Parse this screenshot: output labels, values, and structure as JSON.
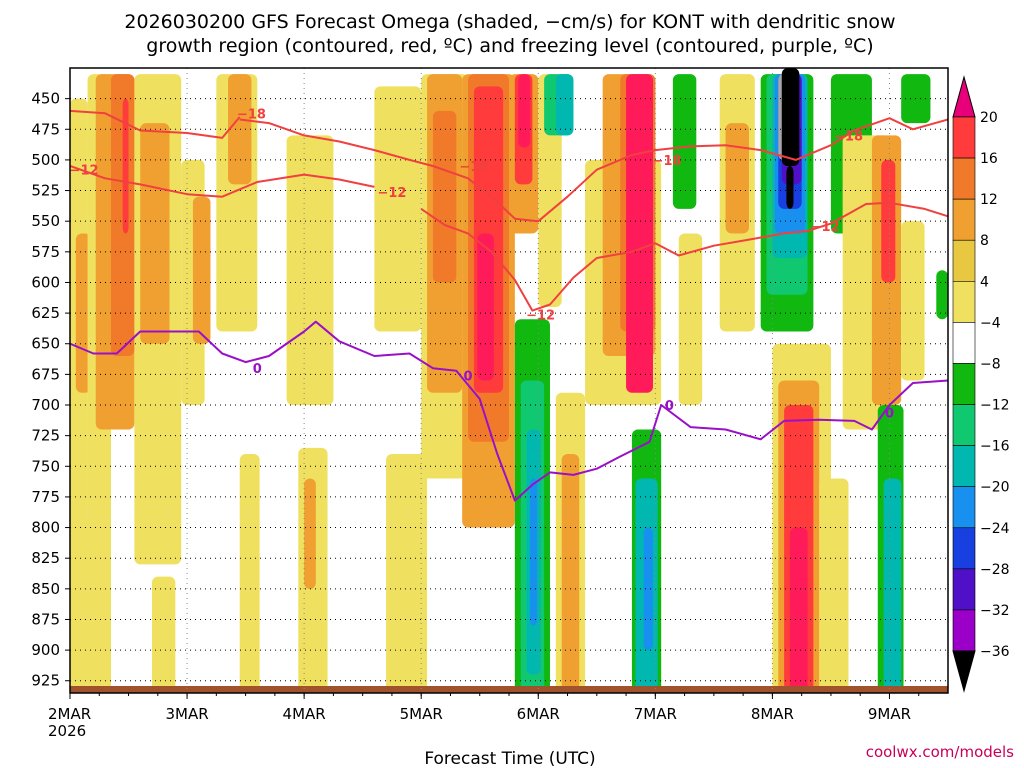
{
  "chart_data": {
    "type": "heatmap",
    "title_line1": "2026030200 GFS Forecast Omega (shaded, −cm/s) for KONT with dendritic snow",
    "title_line2": "growth region (contoured, red, ºC) and freezing level (contoured, purple, ºC)",
    "xlabel": "Forecast Time (UTC)",
    "credit": "coolwx.com/models",
    "x_range": [
      0,
      7.5
    ],
    "x_ticks": [
      {
        "x": 0,
        "label": "2MAR",
        "sub": "2026"
      },
      {
        "x": 1,
        "label": "3MAR"
      },
      {
        "x": 2,
        "label": "4MAR"
      },
      {
        "x": 3,
        "label": "5MAR"
      },
      {
        "x": 4,
        "label": "6MAR"
      },
      {
        "x": 5,
        "label": "7MAR"
      },
      {
        "x": 6,
        "label": "8MAR"
      },
      {
        "x": 7,
        "label": "9MAR"
      }
    ],
    "y_range": [
      935,
      425
    ],
    "y_ticks": [
      "450",
      "475",
      "500",
      "525",
      "550",
      "575",
      "600",
      "625",
      "650",
      "675",
      "700",
      "725",
      "750",
      "775",
      "800",
      "825",
      "850",
      "875",
      "900",
      "925"
    ],
    "colorbar": {
      "labels": [
        "20",
        "16",
        "12",
        "8",
        "4",
        "−4",
        "−8",
        "−12",
        "−16",
        "−20",
        "−24",
        "−28",
        "−32",
        "−36"
      ],
      "colors": [
        "#ff1a5a",
        "#ff3b3b",
        "#f07a2a",
        "#f0a030",
        "#e8c840",
        "#f0e060",
        "#ffffff",
        "#10b810",
        "#10c870",
        "#00b8b0",
        "#1890f0",
        "#1840e0",
        "#5010c8",
        "#9a00c8",
        "#a8a8a8",
        "#000000"
      ],
      "top_arrow": "#e8007a",
      "bottom_arrow": "#000000"
    },
    "shading_columns": [
      {
        "x0": 0.0,
        "x1": 0.15,
        "p0": 450,
        "p1": 935,
        "color": "#f0e060"
      },
      {
        "x0": 0.05,
        "x1": 0.18,
        "p0": 560,
        "p1": 690,
        "color": "#f0a030"
      },
      {
        "x0": 0.15,
        "x1": 0.35,
        "p0": 430,
        "p1": 930,
        "color": "#f0e060"
      },
      {
        "x0": 0.22,
        "x1": 0.55,
        "p0": 430,
        "p1": 720,
        "color": "#f0a030"
      },
      {
        "x0": 0.35,
        "x1": 0.55,
        "p0": 430,
        "p1": 660,
        "color": "#f07a2a"
      },
      {
        "x0": 0.45,
        "x1": 0.5,
        "p0": 450,
        "p1": 560,
        "color": "#ff3b3b"
      },
      {
        "x0": 0.55,
        "x1": 0.95,
        "p0": 430,
        "p1": 830,
        "color": "#f0e060"
      },
      {
        "x0": 0.6,
        "x1": 0.85,
        "p0": 470,
        "p1": 650,
        "color": "#f0a030"
      },
      {
        "x0": 0.95,
        "x1": 1.15,
        "p0": 500,
        "p1": 700,
        "color": "#f0e060"
      },
      {
        "x0": 1.05,
        "x1": 1.2,
        "p0": 530,
        "p1": 650,
        "color": "#f0a030"
      },
      {
        "x0": 1.25,
        "x1": 1.6,
        "p0": 430,
        "p1": 640,
        "color": "#f0e060"
      },
      {
        "x0": 1.35,
        "x1": 1.55,
        "p0": 430,
        "p1": 520,
        "color": "#f0a030"
      },
      {
        "x0": 1.85,
        "x1": 2.25,
        "p0": 480,
        "p1": 700,
        "color": "#f0e060"
      },
      {
        "x0": 1.95,
        "x1": 2.2,
        "p0": 735,
        "p1": 935,
        "color": "#f0e060"
      },
      {
        "x0": 2.0,
        "x1": 2.1,
        "p0": 760,
        "p1": 850,
        "color": "#f0a030"
      },
      {
        "x0": 1.45,
        "x1": 1.62,
        "p0": 740,
        "p1": 935,
        "color": "#f0e060"
      },
      {
        "x0": 0.7,
        "x1": 0.9,
        "p0": 840,
        "p1": 935,
        "color": "#f0e060"
      },
      {
        "x0": 0.15,
        "x1": 0.35,
        "p0": 790,
        "p1": 935,
        "color": "#f0e060"
      },
      {
        "x0": 2.6,
        "x1": 3.0,
        "p0": 440,
        "p1": 640,
        "color": "#f0e060"
      },
      {
        "x0": 2.7,
        "x1": 3.05,
        "p0": 740,
        "p1": 935,
        "color": "#f0e060"
      },
      {
        "x0": 3.0,
        "x1": 3.4,
        "p0": 430,
        "p1": 760,
        "color": "#f0e060"
      },
      {
        "x0": 3.05,
        "x1": 3.35,
        "p0": 430,
        "p1": 690,
        "color": "#f0a030"
      },
      {
        "x0": 3.1,
        "x1": 3.3,
        "p0": 460,
        "p1": 600,
        "color": "#f07a2a"
      },
      {
        "x0": 3.35,
        "x1": 3.8,
        "p0": 430,
        "p1": 800,
        "color": "#f0a030"
      },
      {
        "x0": 3.4,
        "x1": 3.75,
        "p0": 430,
        "p1": 730,
        "color": "#f07a2a"
      },
      {
        "x0": 3.45,
        "x1": 3.7,
        "p0": 440,
        "p1": 690,
        "color": "#ff3b3b"
      },
      {
        "x0": 3.48,
        "x1": 3.62,
        "p0": 560,
        "p1": 680,
        "color": "#ff1a5a"
      },
      {
        "x0": 3.75,
        "x1": 4.0,
        "p0": 430,
        "p1": 560,
        "color": "#f0a030"
      },
      {
        "x0": 3.8,
        "x1": 3.95,
        "p0": 430,
        "p1": 520,
        "color": "#ff3b3b"
      },
      {
        "x0": 3.83,
        "x1": 3.93,
        "p0": 430,
        "p1": 490,
        "color": "#ff1a5a"
      },
      {
        "x0": 4.0,
        "x1": 4.2,
        "p0": 430,
        "p1": 620,
        "color": "#f0e060"
      },
      {
        "x0": 4.05,
        "x1": 4.3,
        "p0": 430,
        "p1": 480,
        "color": "#10c870"
      },
      {
        "x0": 4.15,
        "x1": 4.3,
        "p0": 430,
        "p1": 480,
        "color": "#00b8b0"
      },
      {
        "x0": 3.8,
        "x1": 4.1,
        "p0": 630,
        "p1": 935,
        "color": "#10b810"
      },
      {
        "x0": 3.85,
        "x1": 4.05,
        "p0": 680,
        "p1": 935,
        "color": "#10c870"
      },
      {
        "x0": 3.9,
        "x1": 4.02,
        "p0": 720,
        "p1": 920,
        "color": "#00b8b0"
      },
      {
        "x0": 3.93,
        "x1": 3.99,
        "p0": 760,
        "p1": 880,
        "color": "#1890f0"
      },
      {
        "x0": 4.15,
        "x1": 4.4,
        "p0": 690,
        "p1": 935,
        "color": "#f0e060"
      },
      {
        "x0": 4.2,
        "x1": 4.35,
        "p0": 740,
        "p1": 935,
        "color": "#f0a030"
      },
      {
        "x0": 4.4,
        "x1": 5.05,
        "p0": 500,
        "p1": 700,
        "color": "#f0e060"
      },
      {
        "x0": 4.55,
        "x1": 5.0,
        "p0": 430,
        "p1": 660,
        "color": "#f0a030"
      },
      {
        "x0": 4.7,
        "x1": 5.0,
        "p0": 430,
        "p1": 640,
        "color": "#f07a2a"
      },
      {
        "x0": 4.75,
        "x1": 4.98,
        "p0": 430,
        "p1": 690,
        "color": "#ff1a5a"
      },
      {
        "x0": 4.8,
        "x1": 5.05,
        "p0": 720,
        "p1": 935,
        "color": "#10b810"
      },
      {
        "x0": 4.83,
        "x1": 5.02,
        "p0": 760,
        "p1": 935,
        "color": "#00b8b0"
      },
      {
        "x0": 4.9,
        "x1": 4.98,
        "p0": 800,
        "p1": 900,
        "color": "#1890f0"
      },
      {
        "x0": 5.15,
        "x1": 5.35,
        "p0": 430,
        "p1": 540,
        "color": "#10b810"
      },
      {
        "x0": 5.2,
        "x1": 5.4,
        "p0": 560,
        "p1": 700,
        "color": "#f0e060"
      },
      {
        "x0": 5.55,
        "x1": 5.85,
        "p0": 430,
        "p1": 640,
        "color": "#f0e060"
      },
      {
        "x0": 5.6,
        "x1": 5.8,
        "p0": 470,
        "p1": 560,
        "color": "#f0a030"
      },
      {
        "x0": 5.9,
        "x1": 6.35,
        "p0": 430,
        "p1": 640,
        "color": "#10b810"
      },
      {
        "x0": 5.95,
        "x1": 6.3,
        "p0": 430,
        "p1": 610,
        "color": "#10c870"
      },
      {
        "x0": 6.0,
        "x1": 6.3,
        "p0": 430,
        "p1": 580,
        "color": "#00b8b0"
      },
      {
        "x0": 6.02,
        "x1": 6.28,
        "p0": 430,
        "p1": 560,
        "color": "#1890f0"
      },
      {
        "x0": 6.05,
        "x1": 6.25,
        "p0": 430,
        "p1": 540,
        "color": "#1840e0"
      },
      {
        "x0": 6.08,
        "x1": 6.25,
        "p0": 430,
        "p1": 520,
        "color": "#5010c8"
      },
      {
        "x0": 6.05,
        "x1": 6.13,
        "p0": 430,
        "p1": 500,
        "color": "#a8a8a8"
      },
      {
        "x0": 6.08,
        "x1": 6.23,
        "p0": 425,
        "p1": 505,
        "color": "#000000"
      },
      {
        "x0": 6.12,
        "x1": 6.18,
        "p0": 505,
        "p1": 540,
        "color": "#000000"
      },
      {
        "x0": 6.0,
        "x1": 6.5,
        "p0": 650,
        "p1": 935,
        "color": "#f0e060"
      },
      {
        "x0": 6.05,
        "x1": 6.4,
        "p0": 680,
        "p1": 935,
        "color": "#f0a030"
      },
      {
        "x0": 6.1,
        "x1": 6.35,
        "p0": 700,
        "p1": 935,
        "color": "#ff3b3b"
      },
      {
        "x0": 6.15,
        "x1": 6.3,
        "p0": 800,
        "p1": 935,
        "color": "#ff1a5a"
      },
      {
        "x0": 6.4,
        "x1": 6.65,
        "p0": 760,
        "p1": 935,
        "color": "#f0e060"
      },
      {
        "x0": 6.5,
        "x1": 6.85,
        "p0": 430,
        "p1": 560,
        "color": "#10b810"
      },
      {
        "x0": 6.6,
        "x1": 7.0,
        "p0": 480,
        "p1": 720,
        "color": "#f0e060"
      },
      {
        "x0": 6.85,
        "x1": 7.1,
        "p0": 480,
        "p1": 700,
        "color": "#f0a030"
      },
      {
        "x0": 6.93,
        "x1": 7.05,
        "p0": 500,
        "p1": 600,
        "color": "#ff3b3b"
      },
      {
        "x0": 6.9,
        "x1": 7.12,
        "p0": 700,
        "p1": 935,
        "color": "#10b810"
      },
      {
        "x0": 6.95,
        "x1": 7.1,
        "p0": 760,
        "p1": 935,
        "color": "#00b8b0"
      },
      {
        "x0": 7.1,
        "x1": 7.35,
        "p0": 430,
        "p1": 470,
        "color": "#10b810"
      },
      {
        "x0": 7.1,
        "x1": 7.3,
        "p0": 550,
        "p1": 680,
        "color": "#f0e060"
      },
      {
        "x0": 7.4,
        "x1": 7.5,
        "p0": 590,
        "p1": 630,
        "color": "#10b810"
      }
    ],
    "series": [
      {
        "name": "dgz -18",
        "color": "#f04040",
        "label": "−18",
        "segments": [
          [
            [
              1.45,
              467
            ],
            [
              1.7,
              470
            ],
            [
              2.0,
              480
            ],
            [
              2.3,
              485
            ],
            [
              2.6,
              492
            ],
            [
              2.9,
              500
            ],
            [
              3.1,
              505
            ],
            [
              3.4,
              515
            ]
          ],
          [
            [
              3.4,
              515
            ],
            [
              3.6,
              530
            ],
            [
              3.8,
              548
            ],
            [
              4.0,
              550
            ],
            [
              4.25,
              530
            ],
            [
              4.5,
              508
            ],
            [
              4.8,
              496
            ],
            [
              5.0,
              492
            ],
            [
              5.3,
              489
            ],
            [
              5.6,
              488
            ],
            [
              5.9,
              492
            ],
            [
              6.2,
              500
            ],
            [
              6.5,
              488
            ],
            [
              6.7,
              476
            ],
            [
              7.0,
              466
            ],
            [
              7.2,
              475
            ],
            [
              7.5,
              467
            ]
          ]
        ],
        "labels": [
          [
            1.55,
            462
          ],
          [
            3.45,
            505
          ],
          [
            5.1,
            500
          ],
          [
            6.65,
            480
          ]
        ]
      },
      {
        "name": "dgz -12",
        "color": "#f04040",
        "label": "−12",
        "segments": [
          [
            [
              0.0,
              460
            ],
            [
              0.3,
              462
            ],
            [
              0.6,
              476
            ],
            [
              1.0,
              478
            ],
            [
              1.3,
              482
            ],
            [
              1.45,
              465
            ]
          ],
          [
            [
              0.0,
              505
            ],
            [
              0.3,
              515
            ],
            [
              0.6,
              520
            ],
            [
              1.0,
              528
            ],
            [
              1.3,
              530
            ],
            [
              1.6,
              518
            ],
            [
              2.0,
              512
            ],
            [
              2.3,
              516
            ],
            [
              2.6,
              522
            ]
          ],
          [
            [
              3.0,
              540
            ],
            [
              3.2,
              553
            ],
            [
              3.4,
              560
            ],
            [
              3.6,
              575
            ],
            [
              3.8,
              598
            ],
            [
              3.95,
              623
            ],
            [
              4.1,
              618
            ],
            [
              4.3,
              596
            ],
            [
              4.5,
              580
            ],
            [
              4.8,
              575
            ],
            [
              5.0,
              568
            ],
            [
              5.2,
              578
            ],
            [
              5.5,
              570
            ],
            [
              5.8,
              565
            ],
            [
              6.1,
              560
            ],
            [
              6.3,
              558
            ],
            [
              6.5,
              552
            ],
            [
              6.8,
              536
            ],
            [
              7.0,
              535
            ],
            [
              7.3,
              540
            ],
            [
              7.5,
              546
            ]
          ]
        ],
        "labels": [
          [
            0.12,
            508
          ],
          [
            2.75,
            526
          ],
          [
            4.02,
            626
          ],
          [
            6.45,
            554
          ]
        ]
      },
      {
        "name": "freezing level 0",
        "color": "#9a10c8",
        "label": "0",
        "segments": [
          [
            [
              0.0,
              650
            ],
            [
              0.2,
              658
            ],
            [
              0.4,
              658
            ],
            [
              0.6,
              640
            ],
            [
              0.9,
              640
            ],
            [
              1.1,
              640
            ],
            [
              1.3,
              658
            ],
            [
              1.5,
              665
            ],
            [
              1.7,
              660
            ],
            [
              2.0,
              640
            ],
            [
              2.1,
              632
            ],
            [
              2.3,
              648
            ],
            [
              2.6,
              660
            ],
            [
              2.9,
              658
            ],
            [
              3.1,
              670
            ],
            [
              3.3,
              672
            ],
            [
              3.5,
              695
            ],
            [
              3.65,
              740
            ],
            [
              3.8,
              778
            ],
            [
              3.95,
              765
            ],
            [
              4.1,
              755
            ],
            [
              4.3,
              757
            ],
            [
              4.5,
              752
            ],
            [
              4.7,
              742
            ],
            [
              4.95,
              730
            ],
            [
              5.05,
              700
            ],
            [
              5.3,
              718
            ],
            [
              5.6,
              720
            ],
            [
              5.9,
              728
            ],
            [
              6.1,
              713
            ],
            [
              6.4,
              712
            ],
            [
              6.7,
              713
            ],
            [
              6.85,
              720
            ],
            [
              7.0,
              700
            ],
            [
              7.2,
              682
            ],
            [
              7.5,
              680
            ]
          ]
        ],
        "labels": [
          [
            1.6,
            670
          ],
          [
            3.4,
            676
          ],
          [
            5.12,
            700
          ],
          [
            7.0,
            706
          ]
        ]
      }
    ]
  }
}
